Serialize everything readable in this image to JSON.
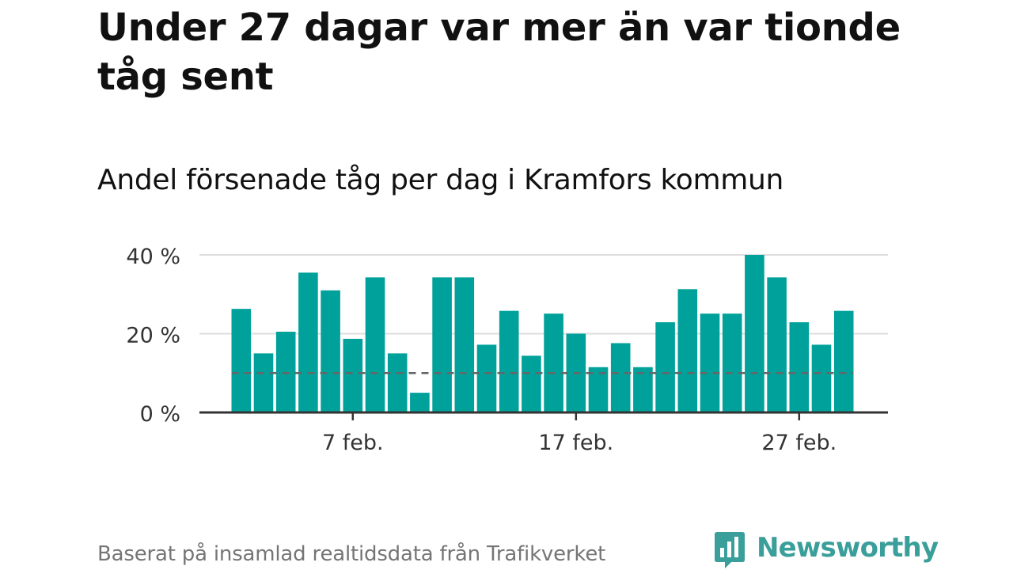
{
  "title": "Under 27 dagar var mer än var tionde tåg sent",
  "subtitle": "Andel försenade tåg per dag i Kramfors kommun",
  "source": "Baserat på insamlad realtidsdata från Trafikverket",
  "brand": {
    "name": "Newsworthy",
    "color": "#3a9f9a",
    "icon": "newsworthy-chart-bubble-icon"
  },
  "colors": {
    "bar": "#00a19a",
    "reference": "#666666",
    "grid": "#dddddd",
    "axis": "#333333"
  },
  "chart_data": {
    "type": "bar",
    "x": [
      "2 feb.",
      "3 feb.",
      "4 feb.",
      "5 feb.",
      "6 feb.",
      "7 feb.",
      "8 feb.",
      "9 feb.",
      "10 feb.",
      "11 feb.",
      "12 feb.",
      "13 feb.",
      "14 feb.",
      "15 feb.",
      "16 feb.",
      "17 feb.",
      "18 feb.",
      "19 feb.",
      "20 feb.",
      "21 feb.",
      "22 feb.",
      "23 feb.",
      "24 feb.",
      "25 feb.",
      "26 feb.",
      "27 feb.",
      "28 feb.",
      "29 feb."
    ],
    "values": [
      26.3,
      15.0,
      20.5,
      35.5,
      31.0,
      18.7,
      34.3,
      15.0,
      5.0,
      34.3,
      34.3,
      17.2,
      25.8,
      14.4,
      25.1,
      20.0,
      11.5,
      17.6,
      11.5,
      22.9,
      31.3,
      25.1,
      25.1,
      40.0,
      34.3,
      22.9,
      17.2,
      25.8
    ],
    "ylim": [
      0,
      40
    ],
    "yticks": [
      0,
      20,
      40
    ],
    "ytick_labels": [
      "0 %",
      "20 %",
      "40 %"
    ],
    "xticks": [
      "7 feb.",
      "17 feb.",
      "27 feb."
    ],
    "reference_line": 10,
    "grid": true
  }
}
